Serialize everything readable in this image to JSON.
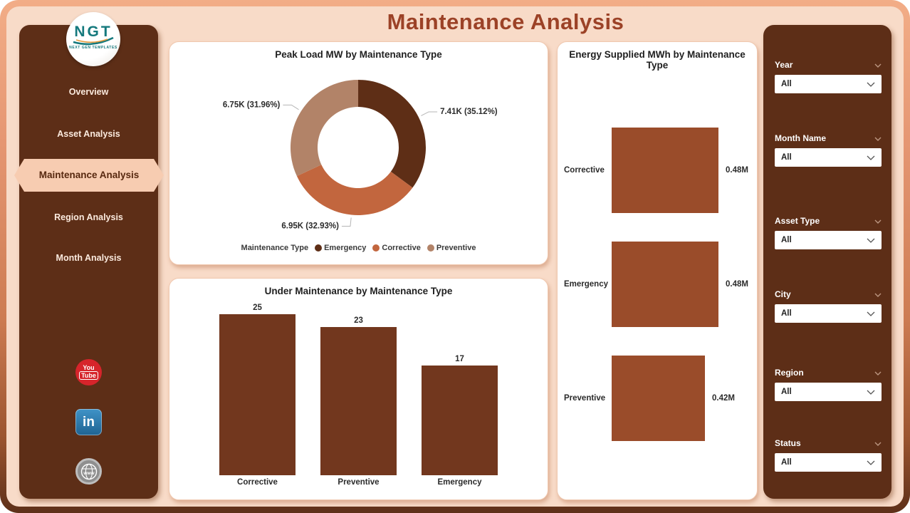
{
  "app": {
    "title": "Maintenance Analysis"
  },
  "sidebar": {
    "logo": {
      "text": "NGT",
      "subtext": "NEXT GEN TEMPLATES"
    },
    "items": [
      {
        "label": "Overview",
        "active": false
      },
      {
        "label": "Asset Analysis",
        "active": false
      },
      {
        "label": "Maintenance Analysis",
        "active": true
      },
      {
        "label": "Region Analysis",
        "active": false
      },
      {
        "label": "Month Analysis",
        "active": false
      }
    ],
    "social": [
      {
        "name": "youtube-icon",
        "lines": [
          "You",
          "Tube"
        ]
      },
      {
        "name": "linkedin-icon",
        "glyph": "in"
      },
      {
        "name": "website-icon",
        "glyph": "www"
      }
    ]
  },
  "filters": {
    "items": [
      {
        "label": "Year",
        "value": "All"
      },
      {
        "label": "Month Name",
        "value": "All"
      },
      {
        "label": "Asset Type",
        "value": "All"
      },
      {
        "label": "City",
        "value": "All"
      },
      {
        "label": "Region",
        "value": "All"
      },
      {
        "label": "Status",
        "value": "All"
      }
    ]
  },
  "colors": {
    "background": "#f8dbc8",
    "frame": "#d98a63",
    "panel_brown": "#5d2e17",
    "active_pill": "#f7ccb1",
    "title": "#9c4227",
    "emergency": "#5e2e16",
    "corrective": "#c2663e",
    "preventive": "#b28368",
    "vbar": "#72371e",
    "hbar": "#9a4c2a"
  },
  "chart_data": [
    {
      "type": "pie",
      "subtype": "donut",
      "title": "Peak Load MW by Maintenance Type",
      "legend_title": "Maintenance Type",
      "legend_position": "bottom",
      "slices": [
        {
          "label": "Emergency",
          "value": 7410,
          "pct": 35.12,
          "display": "7.41K (35.12%)",
          "color": "#5e2e16"
        },
        {
          "label": "Corrective",
          "value": 6950,
          "pct": 32.93,
          "display": "6.95K (32.93%)",
          "color": "#c2663e"
        },
        {
          "label": "Preventive",
          "value": 6750,
          "pct": 31.96,
          "display": "6.75K (31.96%)",
          "color": "#b28368"
        }
      ]
    },
    {
      "type": "bar",
      "title": "Under Maintenance by Maintenance Type",
      "categories": [
        "Corrective",
        "Preventive",
        "Emergency"
      ],
      "values": [
        25,
        23,
        17
      ],
      "ylim": [
        0,
        25
      ],
      "bar_color": "#72371e",
      "grid": false
    },
    {
      "type": "bar",
      "subtype": "horizontal",
      "title": "Energy Supplied MWh by Maintenance Type",
      "categories": [
        "Corrective",
        "Emergency",
        "Preventive"
      ],
      "values": [
        0.48,
        0.48,
        0.42
      ],
      "value_labels": [
        "0.48M",
        "0.48M",
        "0.42M"
      ],
      "xlim": [
        0,
        0.48
      ],
      "bar_color": "#9a4c2a",
      "grid": false
    }
  ]
}
